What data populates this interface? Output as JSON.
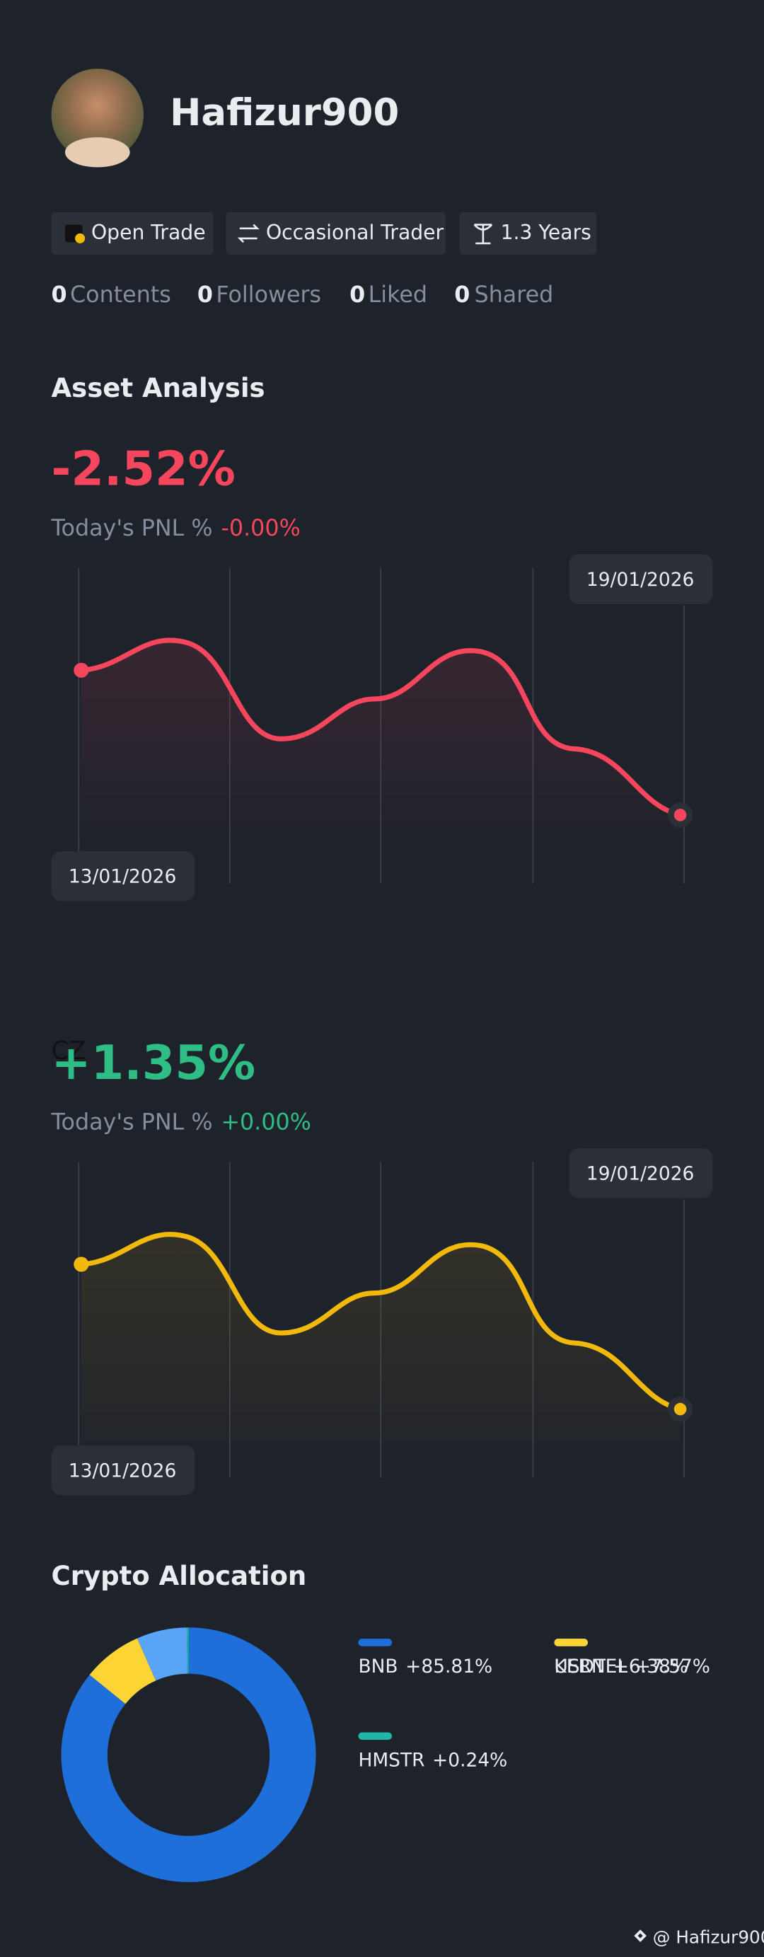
{
  "profile": {
    "username": "Hafizur900"
  },
  "tags": [
    "Open Trade",
    "Occasional Trader",
    "1.3 Years"
  ],
  "stats": [
    {
      "count": 0,
      "label": "Contents"
    },
    {
      "count": 0,
      "label": "Followers"
    },
    {
      "count": 0,
      "label": "Liked"
    },
    {
      "count": 0,
      "label": "Shared"
    }
  ],
  "asset_analysis": {
    "title": "Asset Analysis",
    "charts": [
      {
        "change": "-2.52%",
        "pnl_label": "Today's PNL %",
        "pnl_value": "-0.00%",
        "start_date": "13/01/2026",
        "end_date": "19/01/2026"
      },
      {
        "overlay_label": "CZ",
        "change": "+1.35%",
        "pnl_label": "Today's PNL %",
        "pnl_value": "+0.00%",
        "start_date": "13/01/2026",
        "end_date": "19/01/2026"
      }
    ]
  },
  "chart_data": {
    "type": "pie",
    "title": "Crypto Allocation",
    "categories": [
      "BNB",
      "KERNEL",
      "USDT",
      "HMSTR"
    ],
    "values": [
      85.81,
      7.57,
      6.38,
      0.24
    ],
    "value_labels": [
      "+85.81%",
      "+7.57%",
      "+6.38%",
      "+0.24%"
    ],
    "colors": [
      "#1f6fdb",
      "#fcd535",
      "#5aa5f5",
      "#1fb5a8"
    ]
  },
  "footer": "@ Hafizur900"
}
